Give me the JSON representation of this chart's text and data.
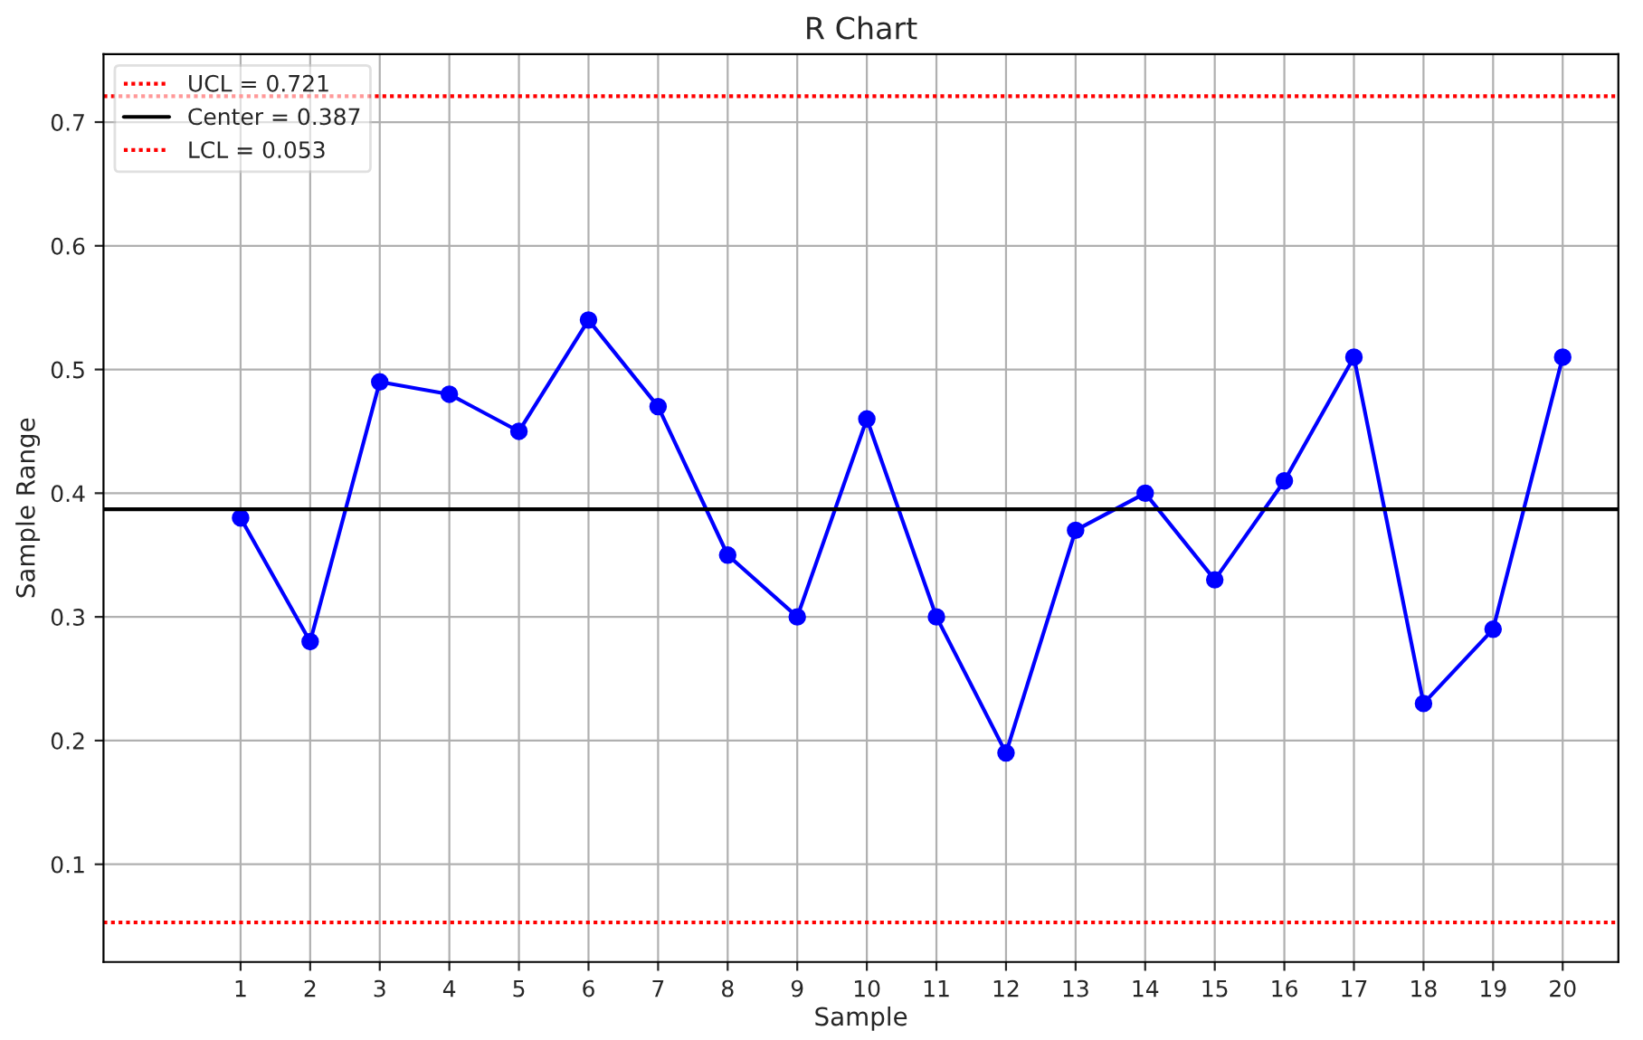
{
  "chart_data": {
    "type": "line",
    "title": "R Chart",
    "xlabel": "Sample",
    "ylabel": "Sample Range",
    "x": [
      1,
      2,
      3,
      4,
      5,
      6,
      7,
      8,
      9,
      10,
      11,
      12,
      13,
      14,
      15,
      16,
      17,
      18,
      19,
      20
    ],
    "series": [
      {
        "color": "#0000ff",
        "values": [
          0.38,
          0.28,
          0.49,
          0.48,
          0.45,
          0.54,
          0.47,
          0.35,
          0.3,
          0.46,
          0.3,
          0.19,
          0.37,
          0.4,
          0.33,
          0.41,
          0.51,
          0.23,
          0.29,
          0.51
        ]
      }
    ],
    "marker": "circle",
    "line_style": "solid",
    "ref_lines": [
      {
        "axis": "y",
        "value": 0.721,
        "label": "UCL = 0.721",
        "color": "#ff0000",
        "line_style": "dotted"
      },
      {
        "axis": "y",
        "value": 0.387,
        "label": "Center = 0.387",
        "color": "#000000",
        "line_style": "solid"
      },
      {
        "axis": "y",
        "value": 0.053,
        "label": "LCL = 0.053",
        "color": "#ff0000",
        "line_style": "dotted"
      }
    ],
    "xlim": [
      -0.97,
      20.8
    ],
    "ylim": [
      0.021,
      0.755
    ],
    "xticks": [
      1,
      2,
      3,
      4,
      5,
      6,
      7,
      8,
      9,
      10,
      11,
      12,
      13,
      14,
      15,
      16,
      17,
      18,
      19,
      20
    ],
    "yticks": [
      0.1,
      0.2,
      0.3,
      0.4,
      0.5,
      0.6,
      0.7
    ],
    "grid": true,
    "legend": "top left"
  }
}
